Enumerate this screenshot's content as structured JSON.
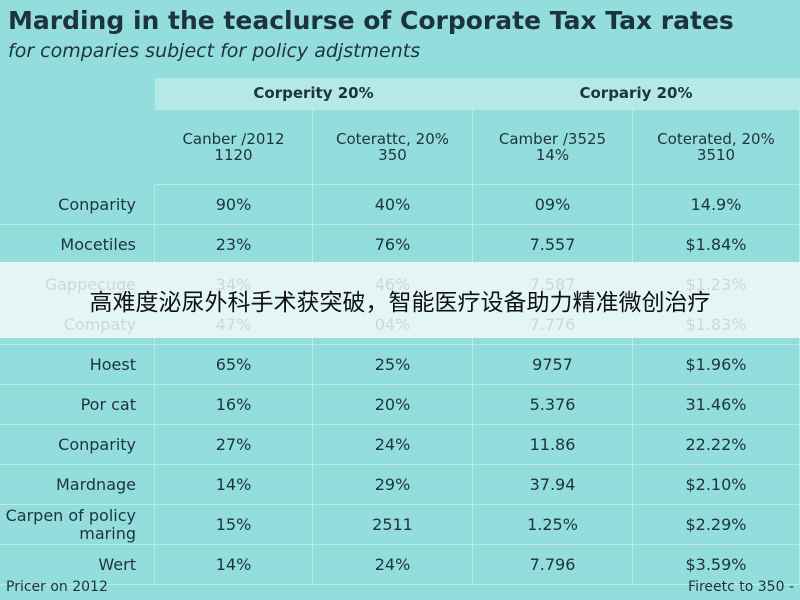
{
  "title": "Marding in the teaclurse of Corporate Tax Tax rates",
  "subtitle": "for comparies subject for policy adjstments",
  "table": {
    "groups": [
      "Corperity 20%",
      "Corpariy 20%"
    ],
    "subheaders": [
      {
        "label": "Canber /2012",
        "value": "1120"
      },
      {
        "label": "Coterattc, 20%",
        "value": "350"
      },
      {
        "label": "Camber /3525",
        "value": "14%"
      },
      {
        "label": "Coterated, 20%",
        "value": "3510"
      }
    ],
    "rows": [
      [
        "Conparity",
        "90%",
        "40%",
        "09%",
        "14.9%"
      ],
      [
        "Mocetiles",
        "23%",
        "76%",
        "7.557",
        "$1.84%"
      ],
      [
        "Gappecuge",
        "34%",
        "46%",
        "7.587",
        "$1.23%"
      ],
      [
        "Compaty",
        "47%",
        "04%",
        "7.776",
        "$1.83%"
      ],
      [
        "Hoest",
        "65%",
        "25%",
        "9757",
        "$1.96%"
      ],
      [
        "Por cat",
        "16%",
        "20%",
        "5.376",
        "31.46%"
      ],
      [
        "Conparity",
        "27%",
        "24%",
        "11.86",
        "22.22%"
      ],
      [
        "Mardnage",
        "14%",
        "29%",
        "37.94",
        "$2.10%"
      ],
      [
        "Carpen of policy maring",
        "15%",
        "2511",
        "1.25%",
        "$2.29%"
      ],
      [
        "Wert",
        "14%",
        "24%",
        "7.796",
        "$3.59%"
      ]
    ]
  },
  "footer": {
    "left": "Pricer on 2012",
    "right": "Fireetc to 350 -"
  },
  "banner": "高难度泌尿外科手术获突破，智能医疗设备助力精准微创治疗"
}
